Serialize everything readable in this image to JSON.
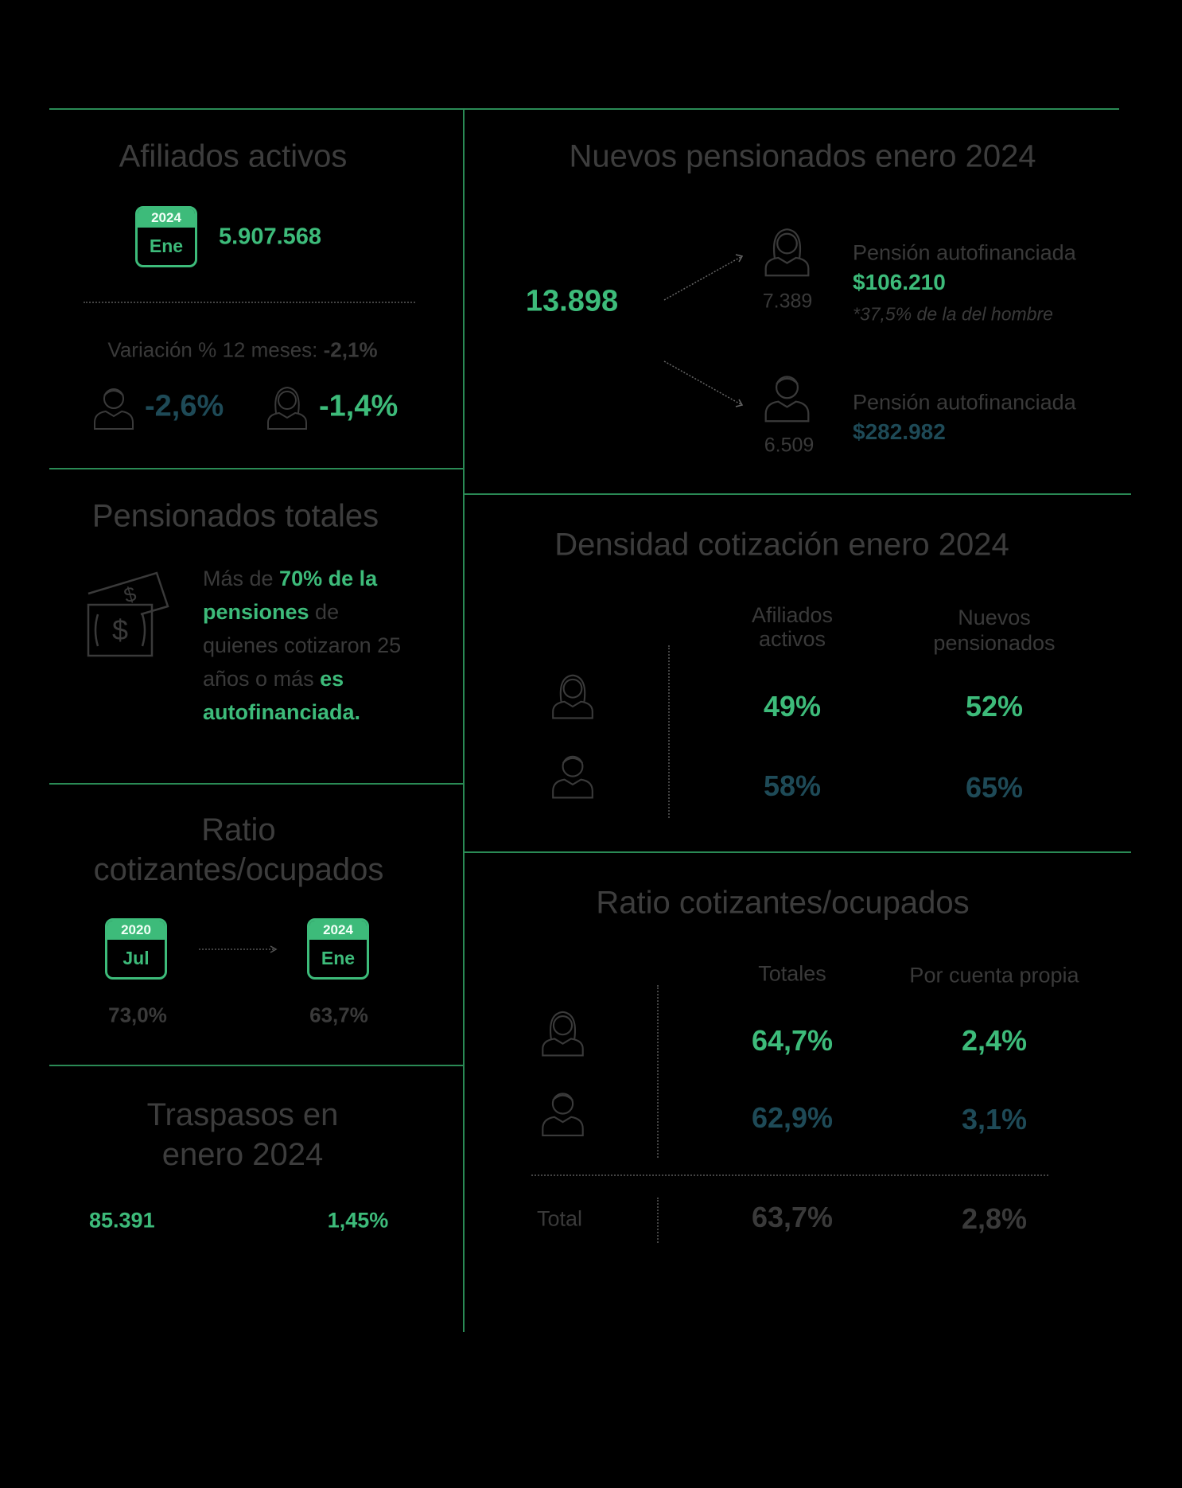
{
  "afiliados_activos": {
    "title": "Afiliados activos",
    "calendar": {
      "year": "2024",
      "month": "Ene"
    },
    "total": "5.907.568",
    "variation": {
      "label": "Variación % 12 meses:",
      "value": "-2,1%"
    },
    "men": "-2,6%",
    "women": "-1,4%"
  },
  "pensionados_totales": {
    "title": "Pensionados totales",
    "text": [
      "Más de ",
      "70% de la pensiones",
      " de quienes cotizaron 25 años o más ",
      "es autofinanciada."
    ]
  },
  "ratio_left": {
    "title": "Ratio cotizantes/ocupados",
    "from": {
      "year": "2020",
      "month": "Jul",
      "value": "73,0%"
    },
    "to": {
      "year": "2024",
      "month": "Ene",
      "value": "63,7%"
    }
  },
  "traspasos": {
    "title": "Traspasos en enero 2024",
    "count": "85.391",
    "rate": "1,45%"
  },
  "nuevos_pensionados": {
    "title": "Nuevos pensionados enero 2024",
    "total": "13.898",
    "women": {
      "count": "7.389",
      "label": "Pensión autofinanciada",
      "amount": "$106.210",
      "note": "*37,5% de la del hombre"
    },
    "men": {
      "count": "6.509",
      "label": "Pensión autofinanciada",
      "amount": "$282.982"
    }
  },
  "densidad": {
    "title": "Densidad cotización enero 2024",
    "columns": [
      "Afiliados activos",
      "Nuevos pensionados"
    ],
    "women": [
      "49%",
      "52%"
    ],
    "men": [
      "58%",
      "65%"
    ]
  },
  "ratio_right": {
    "title": "Ratio cotizantes/ocupados",
    "columns": [
      "Totales",
      "Por cuenta propia"
    ],
    "women": [
      "64,7%",
      "2,4%"
    ],
    "men": [
      "62,9%",
      "3,1%"
    ],
    "total": {
      "label": "Total",
      "values": [
        "63,7%",
        "2,8%"
      ]
    }
  }
}
